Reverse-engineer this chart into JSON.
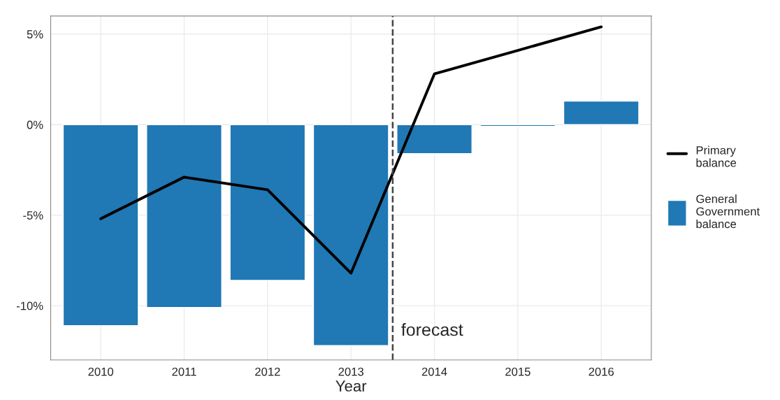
{
  "chart_data": {
    "type": "bar",
    "xlabel": "Year",
    "categories": [
      "2010",
      "2011",
      "2012",
      "2013",
      "2014",
      "2015",
      "2016"
    ],
    "series": [
      {
        "name": "General\nGovernment\nbalance",
        "color": "#2078b4",
        "values": [
          -11.1,
          -10.1,
          -8.6,
          -12.2,
          -1.6,
          -0.1,
          1.3
        ]
      },
      {
        "name": "Primary\nbalance",
        "type": "line",
        "color": "#000000",
        "values": [
          -5.2,
          -2.9,
          -3.6,
          -8.2,
          2.8,
          4.1,
          5.4
        ]
      }
    ],
    "ylim": [
      -13,
      6
    ],
    "yticks": [
      {
        "value": -10,
        "label": "-10%"
      },
      {
        "value": -5,
        "label": "-5%"
      },
      {
        "value": 0,
        "label": "0%"
      },
      {
        "value": 5,
        "label": "5%"
      }
    ],
    "ref_lines": [
      {
        "axis": "x",
        "value": "2014",
        "label": "forecast",
        "color": "#444444",
        "line_style": "dashed"
      }
    ],
    "grid": true,
    "legend": "right",
    "marker": "none",
    "line_style": "solid"
  }
}
